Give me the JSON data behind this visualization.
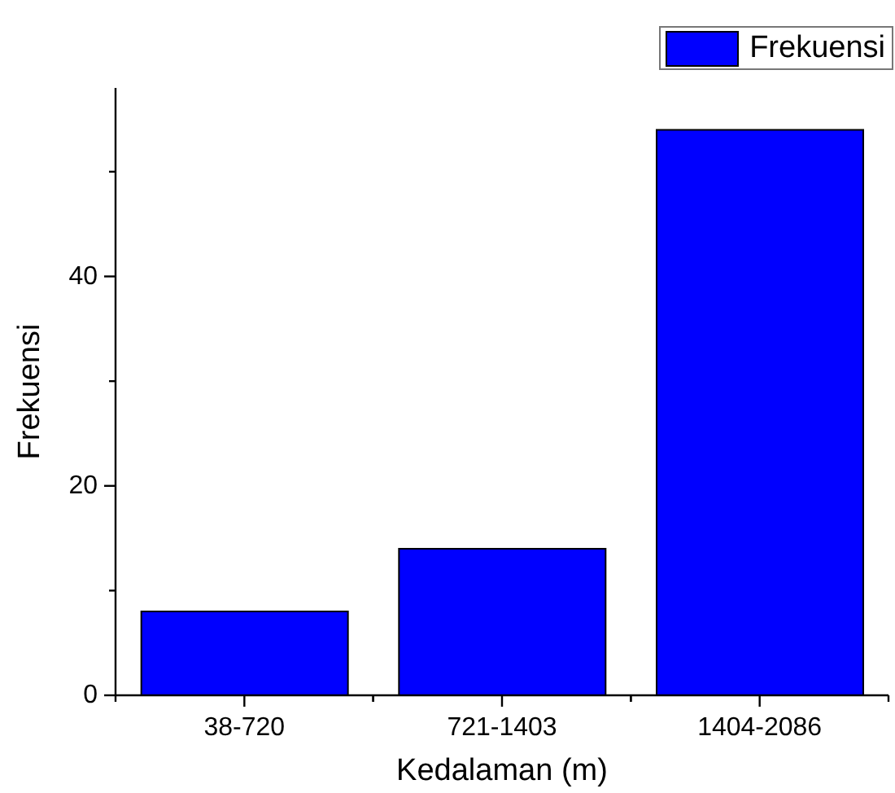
{
  "chart_data": {
    "type": "bar",
    "xlabel": "Kedalaman (m)",
    "ylabel": "Frekuensi",
    "categories": [
      "38-720",
      "721-1403",
      "1404-2086"
    ],
    "series": [
      {
        "name": "Frekuensi",
        "color": "#0000ff",
        "values": [
          8,
          14,
          54
        ]
      }
    ],
    "ylim": [
      0,
      58
    ],
    "yticks": [
      0,
      {
        "value": 10,
        "label": null
      },
      20,
      {
        "value": 30,
        "label": null
      },
      40,
      {
        "value": 50,
        "label": null
      }
    ],
    "legend": "top right"
  }
}
